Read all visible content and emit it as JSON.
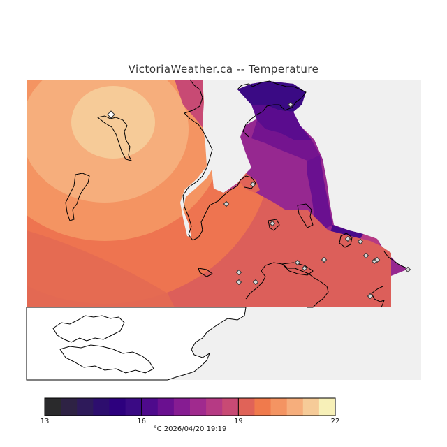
{
  "title": "VictoriaWeather.ca  -- Temperature",
  "colorbar": {
    "min": 13,
    "max": 22,
    "ticks": [
      "13",
      "16",
      "19",
      "22"
    ],
    "caption": "°C  2026/04/20 19:19",
    "colors": [
      "#2a2a2c",
      "#2e2244",
      "#2e1a5a",
      "#2d0e6e",
      "#2d007e",
      "#3a0a84",
      "#4e0a8c",
      "#6a1090",
      "#861c92",
      "#a02a8e",
      "#b63a84",
      "#c84a74",
      "#e06358",
      "#f07a4c",
      "#f49462",
      "#f6ae7c",
      "#f6cb98",
      "#f7f0b8"
    ]
  },
  "stations": {
    "count": 18,
    "marker": "diamond-marker"
  },
  "colors": {
    "no_data": "#f0f0f0",
    "coastline": "#000000",
    "background": "#ffffff"
  }
}
